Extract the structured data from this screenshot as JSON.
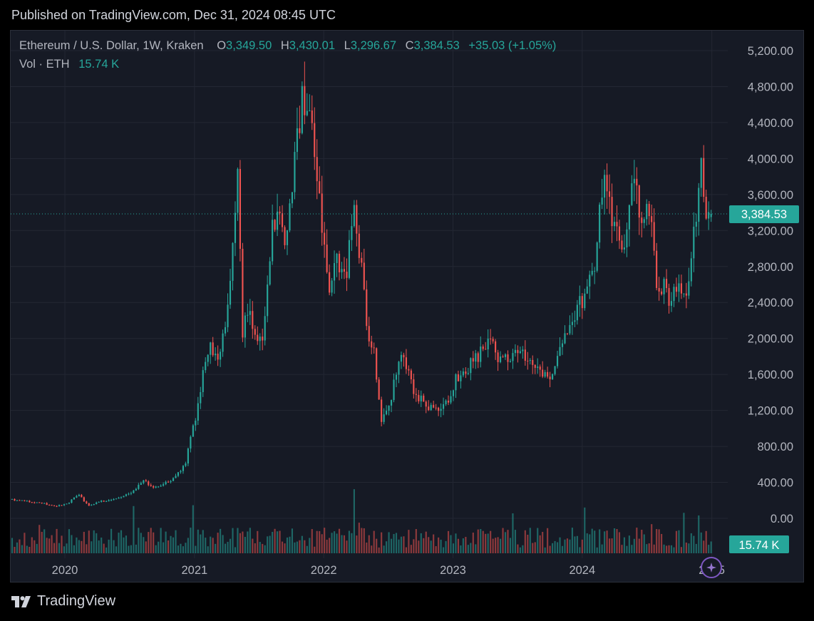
{
  "published": "Published on TradingView.com, Dec 31, 2024 08:45 UTC",
  "brand": "TradingView",
  "legend": {
    "symbol": "Ethereum / U.S. Dollar, 1W, Kraken",
    "open_label": "O",
    "open": "3,349.50",
    "high_label": "H",
    "high": "3,430.01",
    "low_label": "L",
    "low": "3,296.67",
    "close_label": "C",
    "close": "3,384.53",
    "change": "+35.03 (+1.05%)",
    "vol_label": "Vol · ETH",
    "vol": "15.74 K"
  },
  "colors": {
    "up": "#26a69a",
    "down": "#ef5350",
    "background": "#161a25",
    "grid": "#232733",
    "text": "#b2b5be",
    "ai_badge": "#7e57c2"
  },
  "chart_data": {
    "type": "candlestick",
    "symbol": "ETHUSD",
    "interval": "1W",
    "exchange": "Kraken",
    "y_axis": {
      "position": "right",
      "ticks": [
        "5,200.00",
        "4,800.00",
        "4,400.00",
        "4,000.00",
        "3,600.00",
        "3,200.00",
        "2,800.00",
        "2,400.00",
        "2,000.00",
        "1,600.00",
        "1,200.00",
        "800.00",
        "400.00",
        "0.00"
      ],
      "range": [
        0,
        5200
      ]
    },
    "x_axis": {
      "ticks": [
        "2020",
        "2021",
        "2022",
        "2023",
        "2024",
        "2025"
      ],
      "range": [
        "2019-08-01",
        "2025-02-15"
      ]
    },
    "last_price": "3,384.53",
    "last_price_value": 3384.53,
    "last_volume": "15.74 K",
    "grid": true,
    "price_anchors": [
      [
        "2019-08-01",
        215
      ],
      [
        "2019-09-01",
        200
      ],
      [
        "2019-10-01",
        185
      ],
      [
        "2019-11-01",
        170
      ],
      [
        "2019-12-15",
        135
      ],
      [
        "2020-01-15",
        165
      ],
      [
        "2020-02-15",
        265
      ],
      [
        "2020-03-15",
        135
      ],
      [
        "2020-04-15",
        185
      ],
      [
        "2020-05-15",
        205
      ],
      [
        "2020-06-15",
        230
      ],
      [
        "2020-07-15",
        290
      ],
      [
        "2020-08-15",
        420
      ],
      [
        "2020-09-15",
        350
      ],
      [
        "2020-10-15",
        380
      ],
      [
        "2020-11-15",
        460
      ],
      [
        "2020-12-15",
        640
      ],
      [
        "2021-01-15",
        1200
      ],
      [
        "2021-02-15",
        1900
      ],
      [
        "2021-03-15",
        1800
      ],
      [
        "2021-04-15",
        2400
      ],
      [
        "2021-05-10",
        3900
      ],
      [
        "2021-05-24",
        2100
      ],
      [
        "2021-06-15",
        2300
      ],
      [
        "2021-07-01",
        2000
      ],
      [
        "2021-07-20",
        1900
      ],
      [
        "2021-08-15",
        3200
      ],
      [
        "2021-09-07",
        3500
      ],
      [
        "2021-09-21",
        3000
      ],
      [
        "2021-10-15",
        3800
      ],
      [
        "2021-11-08",
        4700
      ],
      [
        "2021-12-01",
        4400
      ],
      [
        "2021-12-20",
        3900
      ],
      [
        "2022-01-20",
        2500
      ],
      [
        "2022-02-15",
        2900
      ],
      [
        "2022-03-10",
        2600
      ],
      [
        "2022-04-01",
        3450
      ],
      [
        "2022-04-20",
        2900
      ],
      [
        "2022-05-15",
        2000
      ],
      [
        "2022-06-01",
        1800
      ],
      [
        "2022-06-20",
        1100
      ],
      [
        "2022-07-15",
        1300
      ],
      [
        "2022-08-12",
        1900
      ],
      [
        "2022-09-15",
        1450
      ],
      [
        "2022-10-15",
        1300
      ],
      [
        "2022-11-10",
        1200
      ],
      [
        "2022-11-25",
        1200
      ],
      [
        "2022-12-15",
        1220
      ],
      [
        "2023-01-15",
        1550
      ],
      [
        "2023-02-15",
        1650
      ],
      [
        "2023-03-15",
        1780
      ],
      [
        "2023-04-15",
        2000
      ],
      [
        "2023-05-15",
        1800
      ],
      [
        "2023-06-15",
        1750
      ],
      [
        "2023-07-15",
        1880
      ],
      [
        "2023-08-15",
        1680
      ],
      [
        "2023-09-15",
        1600
      ],
      [
        "2023-10-15",
        1580
      ],
      [
        "2023-11-15",
        2000
      ],
      [
        "2023-12-15",
        2250
      ],
      [
        "2024-01-15",
        2500
      ],
      [
        "2024-02-15",
        2900
      ],
      [
        "2024-03-10",
        3900
      ],
      [
        "2024-04-01",
        3300
      ],
      [
        "2024-04-20",
        3100
      ],
      [
        "2024-05-10",
        2950
      ],
      [
        "2024-05-25",
        3800
      ],
      [
        "2024-06-15",
        3500
      ],
      [
        "2024-07-01",
        3300
      ],
      [
        "2024-07-20",
        3450
      ],
      [
        "2024-08-05",
        2500
      ],
      [
        "2024-08-25",
        2600
      ],
      [
        "2024-09-10",
        2300
      ],
      [
        "2024-09-28",
        2600
      ],
      [
        "2024-10-15",
        2500
      ],
      [
        "2024-11-01",
        2500
      ],
      [
        "2024-11-20",
        3300
      ],
      [
        "2024-12-10",
        3900
      ],
      [
        "2024-12-20",
        3300
      ],
      [
        "2024-12-30",
        3384.53
      ]
    ]
  }
}
